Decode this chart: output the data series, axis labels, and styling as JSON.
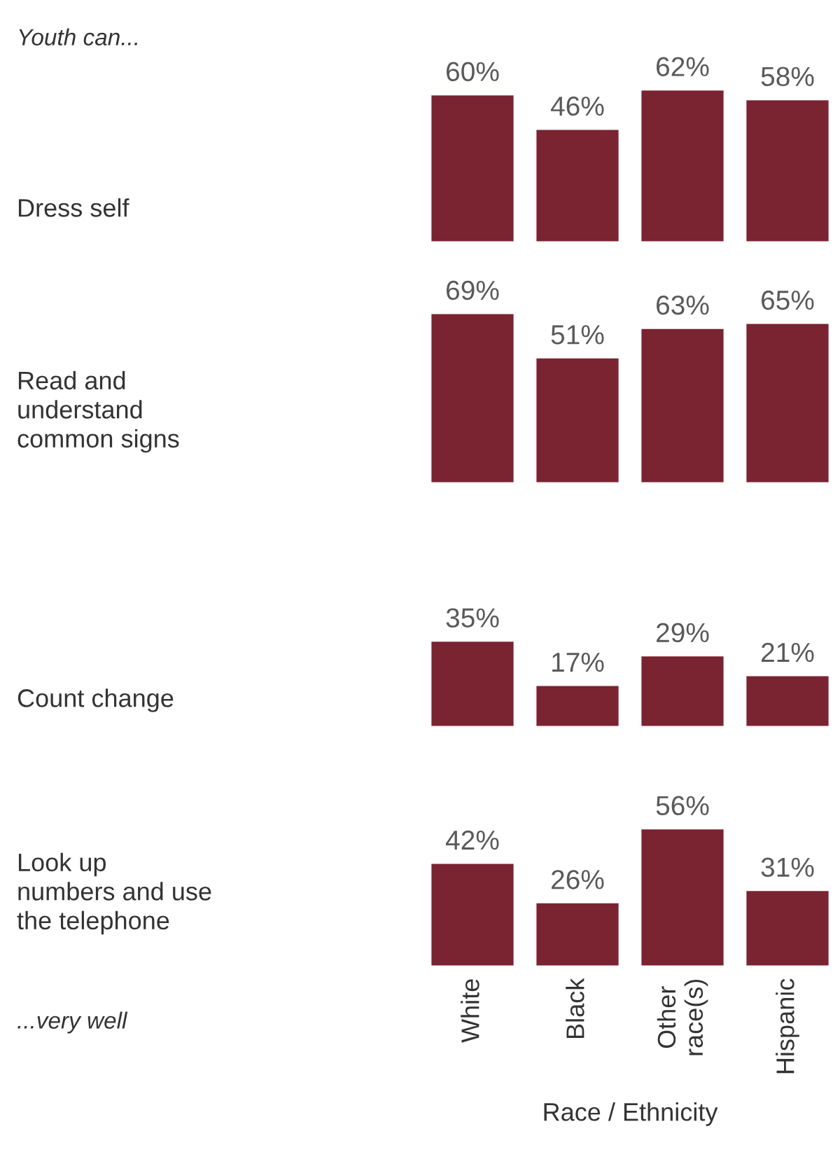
{
  "chart_data": [
    {
      "type": "bar",
      "ylabel": "Dress self",
      "values": [
        60,
        46,
        62,
        58
      ],
      "value_labels": [
        "60%",
        "46%",
        "62%",
        "58%"
      ],
      "color": "#7a2331",
      "tick_labels": false,
      "annotations": [
        "Youth can..."
      ]
    },
    {
      "type": "bar",
      "ylabel": "Read and\nunderstand\ncommon signs",
      "values": [
        69,
        51,
        63,
        65
      ],
      "value_labels": [
        "69%",
        "51%",
        "63%",
        "65%"
      ],
      "color": "#7a2331",
      "tick_labels": false
    },
    {
      "type": "bar",
      "ylabel": "Count change",
      "values": [
        35,
        17,
        29,
        21
      ],
      "value_labels": [
        "35%",
        "17%",
        "29%",
        "21%"
      ],
      "color": "#7a2331",
      "tick_labels": false
    },
    {
      "type": "bar",
      "ylabel": "Look up\nnumbers and use\nthe telephone",
      "categories": [
        "White",
        "Black",
        "Other\nrace(s)",
        "Hispanic"
      ],
      "values": [
        42,
        26,
        56,
        31
      ],
      "value_labels": [
        "42%",
        "26%",
        "56%",
        "31%"
      ],
      "color": "#7a2331",
      "tick_labels": "x",
      "xlabel": "Race / Ethnicity",
      "annotations": [
        "...very well"
      ]
    }
  ]
}
